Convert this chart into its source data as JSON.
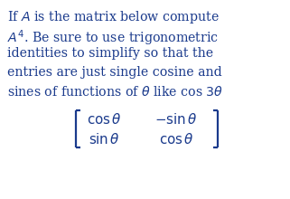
{
  "background_color": "#ffffff",
  "text_color": "#1a3a8c",
  "fig_width": 3.21,
  "fig_height": 2.2,
  "dpi": 100,
  "line1": "If $\\mathit{A}$ is the matrix below compute",
  "line2": "$\\mathit{A}^4$. Be sure to use trigonometric",
  "line3": "identities to simplify so that the",
  "line4": "entries are just single cosine and",
  "line5": "sines of functions of $\\theta$ like cos $3\\theta$",
  "matrix_row1_col1": "$\\cos\\theta$",
  "matrix_row1_col2": "$-\\sin\\theta$",
  "matrix_row2_col1": "$\\sin\\theta$",
  "matrix_row2_col2": "$\\cos\\theta$",
  "para_fontsize": 10.2,
  "matrix_fontsize": 10.8
}
